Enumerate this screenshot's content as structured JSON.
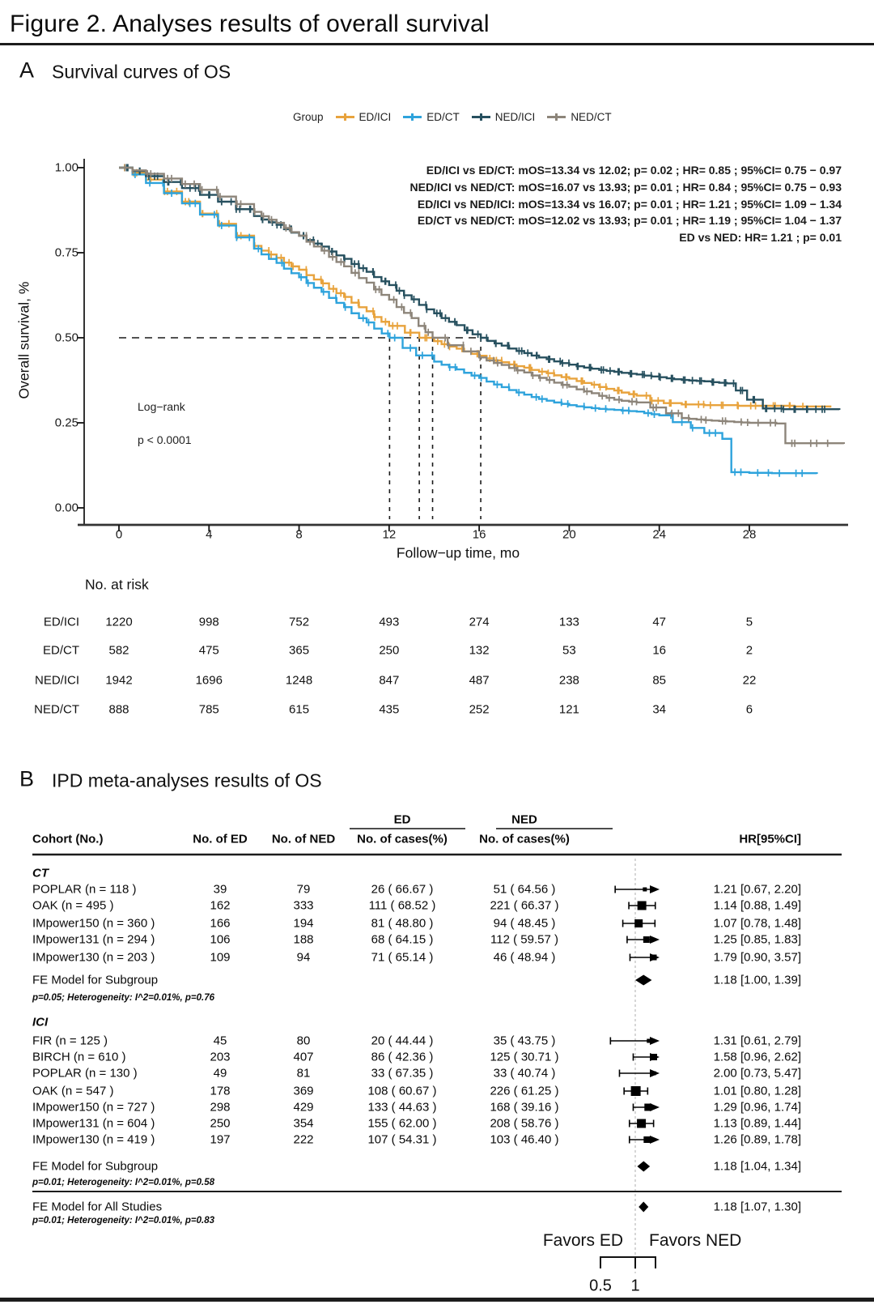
{
  "figure_title": "Figure 2. Analyses results of overall survival",
  "panel_a": {
    "label": "A",
    "title": "Survival curves of OS",
    "legend_title": "Group",
    "annotations": [
      "ED/ICI vs ED/CT: mOS=13.34 vs 12.02; p= 0.02 ; HR= 0.85 ; 95%CI= 0.75 − 0.97",
      "NED/ICI vs NED/CT: mOS=16.07 vs 13.93; p= 0.01 ; HR= 0.84 ; 95%CI= 0.75 − 0.93",
      "ED/ICI vs NED/ICI: mOS=13.34 vs 16.07; p= 0.01 ; HR= 1.21 ; 95%CI= 1.09 − 1.34",
      "ED/CT vs NED/CT: mOS=12.02 vs 13.93; p= 0.01 ; HR= 1.19 ; 95%CI= 1.04 − 1.37",
      "ED vs NED: HR= 1.21 ; p= 0.01"
    ],
    "logrank_label": "Log−rank",
    "logrank_p": "p < 0.0001"
  },
  "panel_b": {
    "label": "B",
    "title": "IPD meta-analyses results of OS",
    "headers": {
      "cohort": "Cohort (No.)",
      "no_ed": "No. of ED",
      "no_ned": "No. of NED",
      "ed_group": "ED",
      "ned_group": "NED",
      "cases": "No. of cases(%)",
      "hr": "HR[95%CI]"
    }
  },
  "chart_data": [
    {
      "type": "line",
      "title": "Survival curves of OS",
      "xlabel": "Follow−up time, mo",
      "ylabel": "Overall survival, %",
      "xlim": [
        0,
        32
      ],
      "ylim": [
        0,
        1
      ],
      "x_ticks": [
        0,
        4,
        8,
        12,
        16,
        20,
        24,
        28
      ],
      "y_tick_labels": [
        "0.00",
        "0.25",
        "0.50",
        "0.75",
        "1.00"
      ],
      "y_tick_values": [
        0,
        0.25,
        0.5,
        0.75,
        1.0
      ],
      "median_lines": [
        12.02,
        13.34,
        13.93,
        16.07
      ],
      "legend_position": "top",
      "grid": false,
      "series": [
        {
          "name": "ED/ICI",
          "color": "#E8A33D",
          "median_os": 13.34,
          "points": [
            [
              0,
              1.0
            ],
            [
              0.6,
              0.985
            ],
            [
              1.2,
              0.965
            ],
            [
              2,
              0.93
            ],
            [
              2.8,
              0.9
            ],
            [
              3.6,
              0.865
            ],
            [
              4.4,
              0.835
            ],
            [
              5.2,
              0.8
            ],
            [
              6,
              0.77
            ],
            [
              7,
              0.735
            ],
            [
              8,
              0.7
            ],
            [
              9,
              0.66
            ],
            [
              10,
              0.62
            ],
            [
              11,
              0.578
            ],
            [
              12,
              0.535
            ],
            [
              12.7,
              0.515
            ],
            [
              13.34,
              0.5
            ],
            [
              14,
              0.49
            ],
            [
              15,
              0.468
            ],
            [
              16,
              0.447
            ],
            [
              17,
              0.428
            ],
            [
              18,
              0.412
            ],
            [
              19,
              0.396
            ],
            [
              20,
              0.38
            ],
            [
              21,
              0.362
            ],
            [
              22,
              0.345
            ],
            [
              23,
              0.33
            ],
            [
              23.6,
              0.315
            ],
            [
              24.2,
              0.308
            ],
            [
              25,
              0.304
            ],
            [
              26,
              0.302
            ],
            [
              27.5,
              0.3
            ],
            [
              29,
              0.3
            ],
            [
              30,
              0.298
            ],
            [
              31.6,
              0.295
            ]
          ]
        },
        {
          "name": "ED/CT",
          "color": "#2EA3DC",
          "median_os": 12.02,
          "points": [
            [
              0,
              1.0
            ],
            [
              0.6,
              0.98
            ],
            [
              1.2,
              0.955
            ],
            [
              2,
              0.925
            ],
            [
              2.8,
              0.895
            ],
            [
              3.6,
              0.862
            ],
            [
              4.4,
              0.83
            ],
            [
              5.2,
              0.795
            ],
            [
              6,
              0.762
            ],
            [
              7,
              0.72
            ],
            [
              8,
              0.678
            ],
            [
              9,
              0.635
            ],
            [
              10,
              0.59
            ],
            [
              11,
              0.545
            ],
            [
              12.02,
              0.5
            ],
            [
              12.6,
              0.47
            ],
            [
              13.2,
              0.448
            ],
            [
              14,
              0.43
            ],
            [
              15,
              0.407
            ],
            [
              16,
              0.382
            ],
            [
              17,
              0.355
            ],
            [
              18,
              0.333
            ],
            [
              19,
              0.315
            ],
            [
              20,
              0.302
            ],
            [
              21,
              0.293
            ],
            [
              22,
              0.288
            ],
            [
              23,
              0.283
            ],
            [
              24,
              0.272
            ],
            [
              24.6,
              0.252
            ],
            [
              25.4,
              0.235
            ],
            [
              26,
              0.22
            ],
            [
              26.8,
              0.203
            ],
            [
              27.2,
              0.105
            ],
            [
              28,
              0.103
            ],
            [
              29,
              0.102
            ],
            [
              31,
              0.1
            ]
          ]
        },
        {
          "name": "NED/ICI",
          "color": "#27505F",
          "median_os": 16.07,
          "points": [
            [
              0,
              1.0
            ],
            [
              0.6,
              0.99
            ],
            [
              1.2,
              0.975
            ],
            [
              2,
              0.958
            ],
            [
              2.8,
              0.94
            ],
            [
              3.6,
              0.92
            ],
            [
              4.4,
              0.9
            ],
            [
              5.2,
              0.878
            ],
            [
              6,
              0.858
            ],
            [
              7,
              0.832
            ],
            [
              8,
              0.8
            ],
            [
              9,
              0.768
            ],
            [
              10,
              0.732
            ],
            [
              11,
              0.694
            ],
            [
              12,
              0.655
            ],
            [
              13,
              0.613
            ],
            [
              14,
              0.572
            ],
            [
              15,
              0.537
            ],
            [
              16.07,
              0.5
            ],
            [
              17,
              0.477
            ],
            [
              18,
              0.455
            ],
            [
              19,
              0.437
            ],
            [
              20,
              0.421
            ],
            [
              21,
              0.409
            ],
            [
              22,
              0.4
            ],
            [
              23,
              0.392
            ],
            [
              24,
              0.384
            ],
            [
              25,
              0.376
            ],
            [
              26,
              0.372
            ],
            [
              27,
              0.366
            ],
            [
              27.4,
              0.345
            ],
            [
              27.9,
              0.318
            ],
            [
              28.6,
              0.292
            ],
            [
              29.5,
              0.29
            ],
            [
              30.5,
              0.29
            ],
            [
              32,
              0.288
            ]
          ]
        },
        {
          "name": "NED/CT",
          "color": "#8D857A",
          "median_os": 13.93,
          "points": [
            [
              0,
              1.0
            ],
            [
              0.6,
              0.992
            ],
            [
              1.2,
              0.982
            ],
            [
              2,
              0.968
            ],
            [
              2.8,
              0.952
            ],
            [
              3.6,
              0.935
            ],
            [
              4.4,
              0.915
            ],
            [
              5.2,
              0.893
            ],
            [
              6,
              0.87
            ],
            [
              7,
              0.838
            ],
            [
              8,
              0.8
            ],
            [
              9,
              0.756
            ],
            [
              10,
              0.71
            ],
            [
              11,
              0.662
            ],
            [
              12,
              0.612
            ],
            [
              13,
              0.558
            ],
            [
              13.93,
              0.5
            ],
            [
              14.6,
              0.478
            ],
            [
              15.3,
              0.46
            ],
            [
              16,
              0.442
            ],
            [
              17,
              0.42
            ],
            [
              18,
              0.398
            ],
            [
              19,
              0.376
            ],
            [
              20,
              0.356
            ],
            [
              21,
              0.337
            ],
            [
              22,
              0.318
            ],
            [
              23,
              0.31
            ],
            [
              23.6,
              0.295
            ],
            [
              24.3,
              0.278
            ],
            [
              25,
              0.264
            ],
            [
              26,
              0.258
            ],
            [
              27,
              0.254
            ],
            [
              28,
              0.25
            ],
            [
              29.2,
              0.248
            ],
            [
              29.6,
              0.19
            ],
            [
              31,
              0.19
            ],
            [
              32.2,
              0.188
            ]
          ]
        }
      ],
      "risk_table": {
        "title": "No. at risk",
        "time_points": [
          0,
          4,
          8,
          12,
          16,
          20,
          24,
          28
        ],
        "rows": [
          {
            "group": "ED/ICI",
            "values": [
              "1220",
              "998",
              "752",
              "493",
              "274",
              "133",
              "47",
              "5"
            ]
          },
          {
            "group": "ED/CT",
            "values": [
              "582",
              "475",
              "365",
              "250",
              "132",
              "53",
              "16",
              "2"
            ]
          },
          {
            "group": "NED/ICI",
            "values": [
              "1942",
              "1696",
              "1248",
              "847",
              "487",
              "238",
              "85",
              "22"
            ]
          },
          {
            "group": "NED/CT",
            "values": [
              "888",
              "785",
              "615",
              "435",
              "252",
              "121",
              "34",
              "6"
            ]
          }
        ]
      }
    },
    {
      "type": "table",
      "title": "IPD meta-analyses results of OS",
      "axis": {
        "scale": "log",
        "ref_line": 1,
        "tick_labels": [
          "0.5",
          "1"
        ],
        "tick_values": [
          0.5,
          1
        ]
      },
      "favors": {
        "left": "Favors ED",
        "right": "Favors NED"
      },
      "subgroups": [
        {
          "name": "CT",
          "rows": [
            {
              "cohort": "POPLAR (n = 118 )",
              "no_ed": "39",
              "no_ned": "79",
              "ed_cases": "26 ( 66.67 )",
              "ned_cases": "51 ( 64.56 )",
              "hr": 1.21,
              "ci_low": 0.67,
              "ci_high": 2.2,
              "hr_text": "1.21 [0.67, 2.20]",
              "marker_size": 5
            },
            {
              "cohort": "OAK (n = 495 )",
              "no_ed": "162",
              "no_ned": "333",
              "ed_cases": "111 ( 68.52 )",
              "ned_cases": "221 ( 66.37 )",
              "hr": 1.14,
              "ci_low": 0.88,
              "ci_high": 1.49,
              "hr_text": "1.14 [0.88, 1.49]",
              "marker_size": 11
            },
            {
              "cohort": "IMpower150 (n = 360 )",
              "no_ed": "166",
              "no_ned": "194",
              "ed_cases": "81 ( 48.80 )",
              "ned_cases": "94 ( 48.45 )",
              "hr": 1.07,
              "ci_low": 0.78,
              "ci_high": 1.48,
              "hr_text": "1.07 [0.78, 1.48]",
              "marker_size": 10
            },
            {
              "cohort": "IMpower131 (n = 294 )",
              "no_ed": "106",
              "no_ned": "188",
              "ed_cases": "68 ( 64.15 )",
              "ned_cases": "112 ( 59.57 )",
              "hr": 1.25,
              "ci_low": 0.85,
              "ci_high": 1.83,
              "hr_text": "1.25 [0.85, 1.83]",
              "marker_size": 8
            },
            {
              "cohort": "IMpower130 (n = 203 )",
              "no_ed": "109",
              "no_ned": "94",
              "ed_cases": "71 ( 65.14 )",
              "ned_cases": "46 ( 48.94 )",
              "hr": 1.79,
              "ci_low": 0.9,
              "ci_high": 3.57,
              "hr_text": "1.79 [0.90, 3.57]",
              "marker_size": 7
            }
          ],
          "fe_model": {
            "label": "FE Model for Subgroup",
            "hr": 1.18,
            "ci_low": 1.0,
            "ci_high": 1.39,
            "hr_text": "1.18 [1.00, 1.39]",
            "stats": "p=0.05; Heterogeneity: I^2=0.01%, p=0.76"
          }
        },
        {
          "name": "ICI",
          "rows": [
            {
              "cohort": "FIR (n = 125 )",
              "no_ed": "45",
              "no_ned": "80",
              "ed_cases": "20 ( 44.44 )",
              "ned_cases": "35 ( 43.75 )",
              "hr": 1.31,
              "ci_low": 0.61,
              "ci_high": 2.79,
              "hr_text": "1.31 [0.61, 2.79]",
              "marker_size": 5
            },
            {
              "cohort": "BIRCH (n = 610 )",
              "no_ed": "203",
              "no_ned": "407",
              "ed_cases": "86 ( 42.36 )",
              "ned_cases": "125 ( 30.71 )",
              "hr": 1.58,
              "ci_low": 0.96,
              "ci_high": 2.62,
              "hr_text": "1.58 [0.96, 2.62]",
              "marker_size": 8
            },
            {
              "cohort": "POPLAR (n = 130 )",
              "no_ed": "49",
              "no_ned": "81",
              "ed_cases": "33 ( 67.35 )",
              "ned_cases": "33 ( 40.74 )",
              "hr": 2.0,
              "ci_low": 0.73,
              "ci_high": 5.47,
              "hr_text": "2.00 [0.73, 5.47]",
              "marker_size": 5
            },
            {
              "cohort": "OAK (n = 547 )",
              "no_ed": "178",
              "no_ned": "369",
              "ed_cases": "108 ( 60.67 )",
              "ned_cases": "226 ( 61.25 )",
              "hr": 1.01,
              "ci_low": 0.8,
              "ci_high": 1.28,
              "hr_text": "1.01 [0.80, 1.28]",
              "marker_size": 12
            },
            {
              "cohort": "IMpower150 (n = 727 )",
              "no_ed": "298",
              "no_ned": "429",
              "ed_cases": "133 ( 44.63 )",
              "ned_cases": "168 ( 39.16 )",
              "hr": 1.29,
              "ci_low": 0.96,
              "ci_high": 1.74,
              "hr_text": "1.29 [0.96, 1.74]",
              "marker_size": 9
            },
            {
              "cohort": "IMpower131 (n = 604 )",
              "no_ed": "250",
              "no_ned": "354",
              "ed_cases": "155 ( 62.00 )",
              "ned_cases": "208 ( 58.76 )",
              "hr": 1.13,
              "ci_low": 0.89,
              "ci_high": 1.44,
              "hr_text": "1.13 [0.89, 1.44]",
              "marker_size": 11
            },
            {
              "cohort": "IMpower130 (n = 419 )",
              "no_ed": "197",
              "no_ned": "222",
              "ed_cases": "107 ( 54.31 )",
              "ned_cases": "103 ( 46.40 )",
              "hr": 1.26,
              "ci_low": 0.89,
              "ci_high": 1.78,
              "hr_text": "1.26 [0.89, 1.78]",
              "marker_size": 8
            }
          ],
          "fe_model": {
            "label": "FE Model for Subgroup",
            "hr": 1.18,
            "ci_low": 1.04,
            "ci_high": 1.34,
            "hr_text": "1.18 [1.04, 1.34]",
            "stats": "p=0.01; Heterogeneity: I^2=0.01%, p=0.58"
          }
        }
      ],
      "overall": {
        "label": "FE Model for All Studies",
        "hr": 1.18,
        "ci_low": 1.07,
        "ci_high": 1.3,
        "hr_text": "1.18 [1.07, 1.30]",
        "stats": "p=0.01; Heterogeneity: I^2=0.01%, p=0.83"
      }
    }
  ]
}
